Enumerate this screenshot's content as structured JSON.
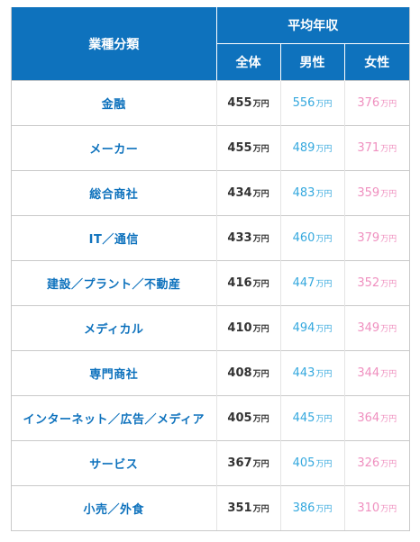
{
  "header": {
    "industry": "業種分類",
    "avg_income": "平均年収",
    "all": "全体",
    "male": "男性",
    "female": "女性"
  },
  "unit": "万円",
  "colors": {
    "header_bg": "#0e72bd",
    "industry_text": "#0e72bd",
    "male_text": "#34a8de",
    "female_text": "#ef8fbf"
  },
  "rows": [
    {
      "industry": "金融",
      "all": "455",
      "male": "556",
      "female": "376"
    },
    {
      "industry": "メーカー",
      "all": "455",
      "male": "489",
      "female": "371"
    },
    {
      "industry": "総合商社",
      "all": "434",
      "male": "483",
      "female": "359"
    },
    {
      "industry": "IT／通信",
      "all": "433",
      "male": "460",
      "female": "379"
    },
    {
      "industry": "建設／プラント／不動産",
      "all": "416",
      "male": "447",
      "female": "352"
    },
    {
      "industry": "メディカル",
      "all": "410",
      "male": "494",
      "female": "349"
    },
    {
      "industry": "専門商社",
      "all": "408",
      "male": "443",
      "female": "344"
    },
    {
      "industry": "インターネット／広告／メディア",
      "all": "405",
      "male": "445",
      "female": "364"
    },
    {
      "industry": "サービス",
      "all": "367",
      "male": "405",
      "female": "326"
    },
    {
      "industry": "小売／外食",
      "all": "351",
      "male": "386",
      "female": "310"
    }
  ]
}
